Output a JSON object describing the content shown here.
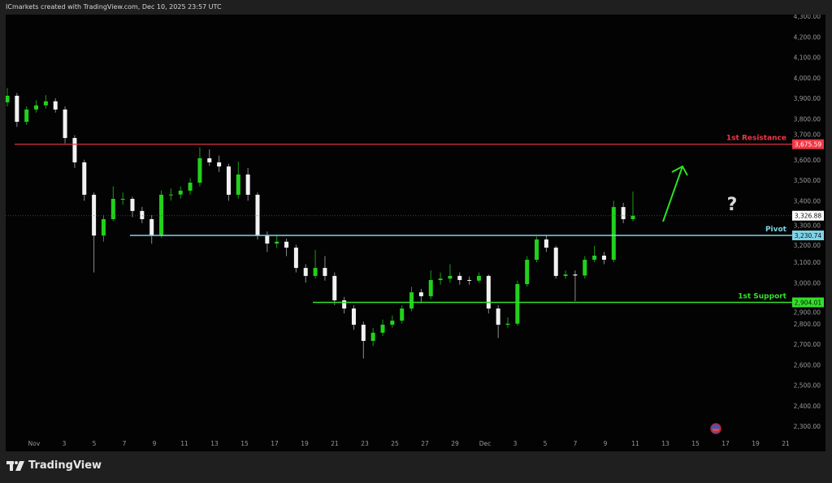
{
  "header": {
    "text": "ICmarkets created with TradingView.com, Dec 10, 2025 23:57 UTC"
  },
  "footer": {
    "brand": "TradingView"
  },
  "colors": {
    "bull": "#22d11b",
    "bear": "#f2f2f2",
    "resistance": "#f23645",
    "pivot": "#7fd3e6",
    "support": "#33e02a",
    "arrow": "#2de01f"
  },
  "chart_data": {
    "type": "candlestick",
    "ylim": [
      2250,
      4320
    ],
    "yticks": [
      4300,
      4200,
      4100,
      4000,
      3900,
      3800,
      3700,
      3600,
      3500,
      3400,
      3300,
      3200,
      3100,
      3000,
      2900,
      2800,
      2700,
      2600,
      2500,
      2400,
      2300
    ],
    "ytick_labels": [
      "4,300.00",
      "4,200.00",
      "4,100.00",
      "4,000.00",
      "3,900.00",
      "3,800.00",
      "3,700.00",
      "3,600.00",
      "3,500.00",
      "3,400.00",
      "3,300.00",
      "3,200.00",
      "3,100.00",
      "3,000.00",
      "2,900.00",
      "2,800.00",
      "2,700.00",
      "2,600.00",
      "2,500.00",
      "2,400.00",
      "2,300.00"
    ],
    "xtick_labels": [
      "Nov",
      "3",
      "5",
      "7",
      "9",
      "11",
      "13",
      "15",
      "17",
      "19",
      "21",
      "23",
      "25",
      "27",
      "29",
      "Dec",
      "3",
      "5",
      "7",
      "9",
      "11",
      "13",
      "15",
      "17",
      "19",
      "21"
    ],
    "last_price": {
      "value": 3326.88,
      "label": "3,326.88"
    },
    "levels": [
      {
        "name": "1st Resistance",
        "value": 3675.59,
        "label": "3,675.59",
        "color": "#f23645"
      },
      {
        "name": "Pivot",
        "value": 3230.74,
        "label": "3,230.74",
        "color": "#7fd3e6"
      },
      {
        "name": "1st Support",
        "value": 2904.01,
        "label": "2,904.01",
        "color": "#33e02a"
      }
    ],
    "annotations": {
      "arrow": "up",
      "question_mark": "?",
      "event_icon": "us-flag-icon"
    },
    "candles_ohlc": [
      [
        3880,
        3950,
        3860,
        3912
      ],
      [
        3912,
        3925,
        3760,
        3785
      ],
      [
        3785,
        3860,
        3770,
        3845
      ],
      [
        3845,
        3890,
        3830,
        3865
      ],
      [
        3865,
        3915,
        3850,
        3885
      ],
      [
        3885,
        3900,
        3830,
        3845
      ],
      [
        3845,
        3860,
        3680,
        3706
      ],
      [
        3706,
        3720,
        3560,
        3587
      ],
      [
        3587,
        3600,
        3400,
        3429
      ],
      [
        3429,
        3440,
        3050,
        3230
      ],
      [
        3230,
        3330,
        3200,
        3310
      ],
      [
        3310,
        3470,
        3300,
        3409
      ],
      [
        3409,
        3440,
        3380,
        3409
      ],
      [
        3409,
        3420,
        3320,
        3350
      ],
      [
        3350,
        3370,
        3290,
        3310
      ],
      [
        3310,
        3330,
        3190,
        3230
      ],
      [
        3230,
        3450,
        3220,
        3429
      ],
      [
        3429,
        3460,
        3400,
        3430
      ],
      [
        3430,
        3470,
        3410,
        3449
      ],
      [
        3449,
        3510,
        3430,
        3488
      ],
      [
        3488,
        3660,
        3470,
        3607
      ],
      [
        3607,
        3650,
        3570,
        3587
      ],
      [
        3587,
        3620,
        3540,
        3567
      ],
      [
        3567,
        3580,
        3400,
        3429
      ],
      [
        3429,
        3590,
        3410,
        3528
      ],
      [
        3528,
        3560,
        3400,
        3429
      ],
      [
        3429,
        3440,
        3210,
        3230
      ],
      [
        3230,
        3250,
        3150,
        3191
      ],
      [
        3191,
        3230,
        3170,
        3200
      ],
      [
        3200,
        3215,
        3130,
        3171
      ],
      [
        3171,
        3185,
        3050,
        3072
      ],
      [
        3072,
        3090,
        3000,
        3033
      ],
      [
        3033,
        3160,
        3020,
        3072
      ],
      [
        3072,
        3130,
        3010,
        3033
      ],
      [
        3033,
        3050,
        2890,
        2914
      ],
      [
        2914,
        2930,
        2850,
        2874
      ],
      [
        2874,
        2890,
        2770,
        2795
      ],
      [
        2795,
        2810,
        2630,
        2716
      ],
      [
        2716,
        2780,
        2690,
        2756
      ],
      [
        2756,
        2820,
        2740,
        2795
      ],
      [
        2795,
        2840,
        2780,
        2815
      ],
      [
        2815,
        2890,
        2800,
        2874
      ],
      [
        2874,
        2980,
        2860,
        2953
      ],
      [
        2953,
        2970,
        2900,
        2934
      ],
      [
        2934,
        3060,
        2920,
        3013
      ],
      [
        3013,
        3050,
        2990,
        3020
      ],
      [
        3020,
        3090,
        3000,
        3033
      ],
      [
        3033,
        3050,
        2990,
        3013
      ],
      [
        3013,
        3030,
        2990,
        3010
      ],
      [
        3010,
        3050,
        3000,
        3033
      ],
      [
        3033,
        3040,
        2850,
        2874
      ],
      [
        2874,
        2890,
        2730,
        2795
      ],
      [
        2795,
        2830,
        2780,
        2800
      ],
      [
        2800,
        3010,
        2790,
        2993
      ],
      [
        2993,
        3130,
        2980,
        3112
      ],
      [
        3112,
        3225,
        3100,
        3211
      ],
      [
        3211,
        3230,
        3150,
        3171
      ],
      [
        3171,
        3180,
        3020,
        3033
      ],
      [
        3033,
        3060,
        3020,
        3040
      ],
      [
        3040,
        3060,
        2910,
        3035
      ],
      [
        3035,
        3130,
        3020,
        3112
      ],
      [
        3112,
        3180,
        3100,
        3132
      ],
      [
        3132,
        3150,
        3090,
        3112
      ],
      [
        3112,
        3400,
        3100,
        3369
      ],
      [
        3369,
        3390,
        3290,
        3310
      ],
      [
        3310,
        3445,
        3300,
        3326.88
      ]
    ]
  }
}
